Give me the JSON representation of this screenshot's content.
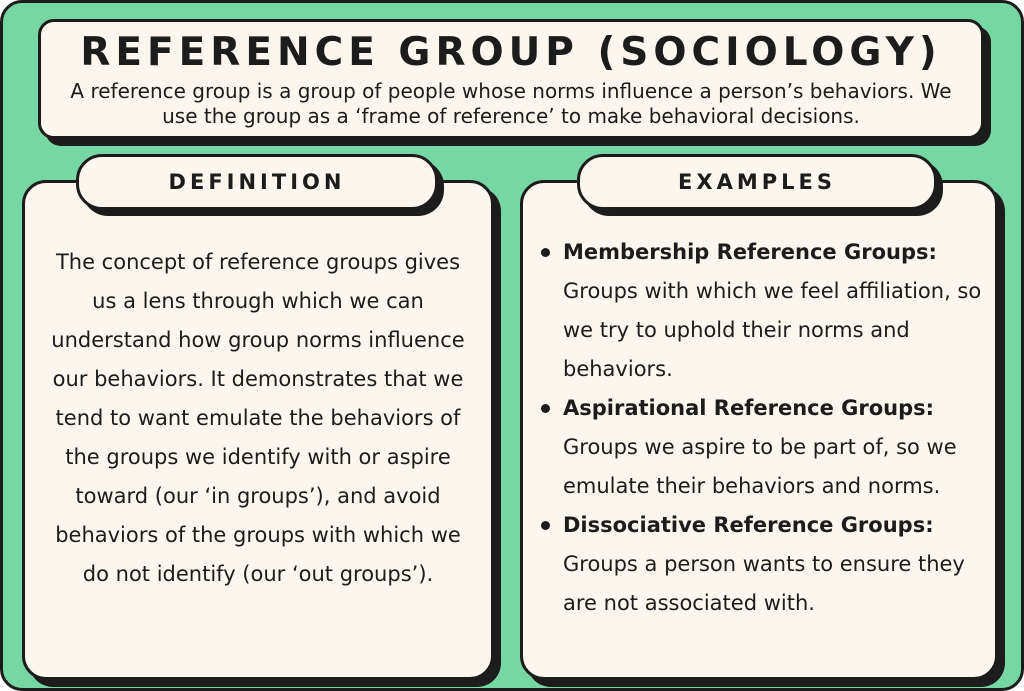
{
  "header": {
    "title": "REFERENCE GROUP (SOCIOLOGY)",
    "subtitle": "A reference group is a group of people whose norms influence a person’s behaviors. We use the group as a ‘frame of reference’ to make behavioral decisions."
  },
  "definition": {
    "heading": "DEFINITION",
    "text": "The concept of reference groups gives us a lens through which we can understand how group norms influence our behaviors. It demonstrates that we tend to want emulate the behaviors of the groups we identify with or aspire toward (our ‘in groups’), and avoid behaviors of the groups with which we do not identify (our ‘out groups’)."
  },
  "examples": {
    "heading": "EXAMPLES",
    "items": [
      {
        "title": "Membership Reference Groups:",
        "description": "Groups with which we feel affiliation, so we try to uphold their norms and behaviors."
      },
      {
        "title": "Aspirational Reference Groups:",
        "description": "Groups we aspire to be part of, so we emulate their behaviors and norms."
      },
      {
        "title": "Dissociative Reference Groups:",
        "description": "Groups a person wants to ensure they are not associated with."
      }
    ]
  },
  "colors": {
    "background": "#77d7a4",
    "card": "#fcf7ee",
    "ink": "#1c1c1c"
  }
}
